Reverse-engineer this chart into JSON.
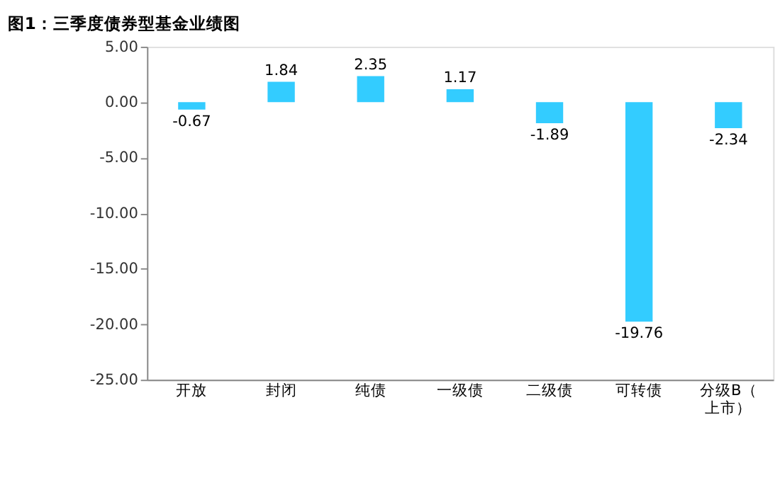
{
  "chart_data": {
    "type": "bar",
    "title": "图1：三季度债券型基金业绩图",
    "categories": [
      "开放",
      "封闭",
      "纯债",
      "一级债",
      "二级债",
      "可转债",
      "分级B（上市）"
    ],
    "values": [
      -0.67,
      1.84,
      2.35,
      1.17,
      -1.89,
      -19.76,
      -2.34
    ],
    "color": "#33ccff",
    "data_labels": true,
    "grid": false,
    "ylim": [
      -25,
      5
    ],
    "yticks": [
      {
        "value": 5,
        "label": "5.00"
      },
      {
        "value": 0,
        "label": "0.00"
      },
      {
        "value": -5,
        "label": "-5.00"
      },
      {
        "value": -10,
        "label": "-10.00"
      },
      {
        "value": -15,
        "label": "-15.00"
      },
      {
        "value": -20,
        "label": "-20.00"
      },
      {
        "value": -25,
        "label": "-25.00"
      }
    ]
  }
}
